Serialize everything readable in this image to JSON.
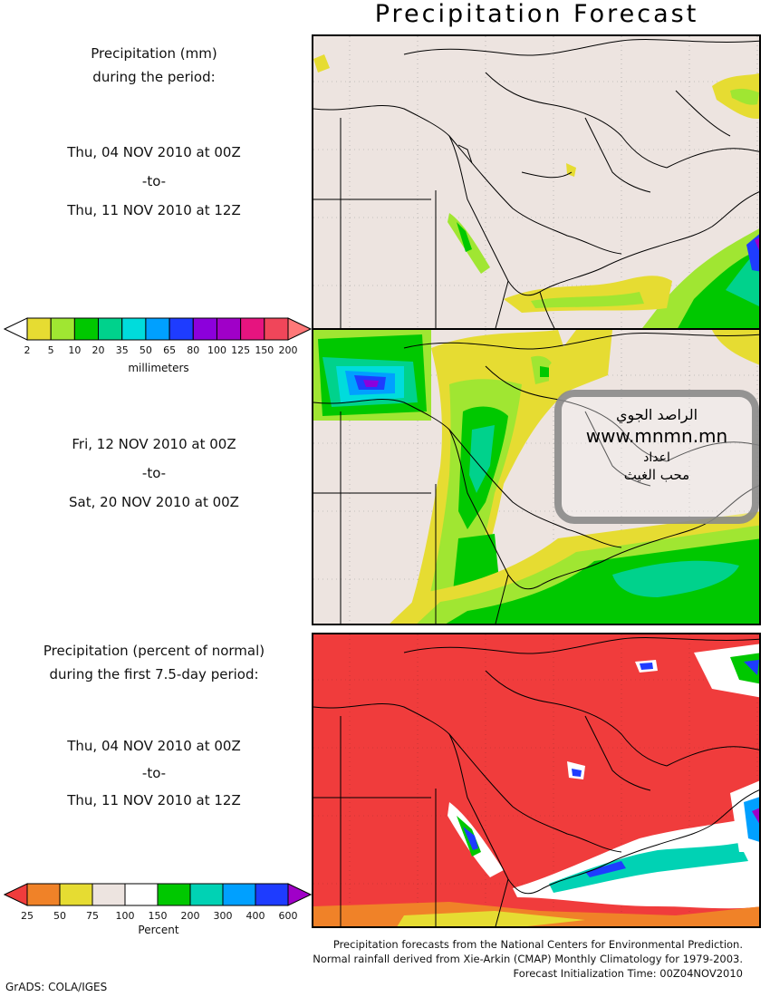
{
  "title": "Precipitation Forecast",
  "panel1_label": {
    "line1": "Precipitation (mm)",
    "line2": "during the period:",
    "start": "Thu, 04 NOV 2010 at 00Z",
    "to": "-to-",
    "end": "Thu, 11 NOV 2010 at 12Z"
  },
  "panel2_label": {
    "start": "Fri, 12 NOV 2010 at 00Z",
    "to": "-to-",
    "end": "Sat, 20 NOV 2010 at 00Z"
  },
  "panel3_label": {
    "line1": "Precipitation (percent of normal)",
    "line2": "during the first 7.5-day period:",
    "start": "Thu, 04 NOV 2010 at 00Z",
    "to": "-to-",
    "end": "Thu, 11 NOV 2010 at 12Z"
  },
  "colorbar_mm": {
    "unit": "millimeters",
    "ticks": [
      "2",
      "5",
      "10",
      "20",
      "35",
      "50",
      "65",
      "80",
      "100",
      "125",
      "150",
      "200"
    ],
    "colors": [
      "#ffffff",
      "#e6dc32",
      "#a0e632",
      "#00c800",
      "#00d28c",
      "#00dcdc",
      "#00a0ff",
      "#1e3cff",
      "#8c00dc",
      "#a000c8",
      "#e6147f",
      "#f0465a",
      "#ff7878"
    ]
  },
  "colorbar_pct": {
    "unit": "Percent",
    "ticks": [
      "25",
      "50",
      "75",
      "100",
      "150",
      "200",
      "300",
      "400",
      "600"
    ],
    "colors": [
      "#f03c3c",
      "#f08228",
      "#e6dc32",
      "#ede4e0",
      "#ffffff",
      "#00c800",
      "#00d2b4",
      "#00a0ff",
      "#1e3cff",
      "#a000c8"
    ]
  },
  "watermark": {
    "line1": "الراصد الجوي",
    "line2": "www.mnmn.mn",
    "line3": "اعداد",
    "line4": "محب الغيث"
  },
  "footer": {
    "line1": "Precipitation forecasts from the National Centers for Environmental Prediction.",
    "line2": "Normal rainfall derived from Xie-Arkin (CMAP) Monthly Climatology for 1979-2003.",
    "line3": "Forecast Initialization Time: 00Z04NOV2010"
  },
  "credit": "GrADS: COLA/IGES",
  "colors": {
    "land": "#ede4e0",
    "below_normal": "#f03c3c"
  }
}
